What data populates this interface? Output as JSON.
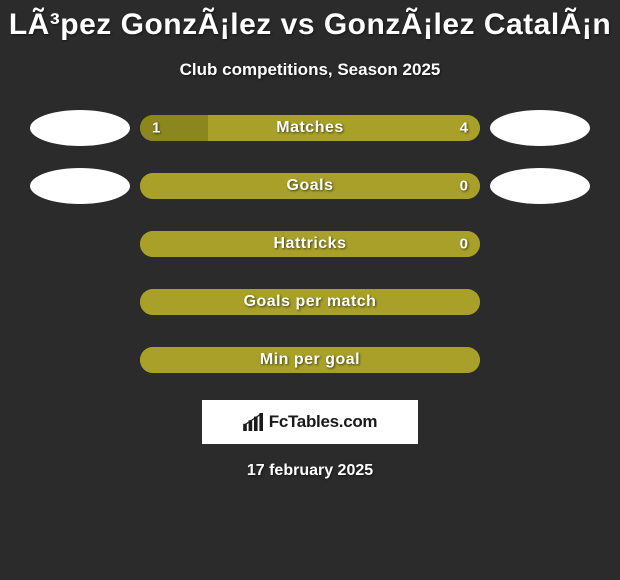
{
  "title": "LÃ³pez GonzÃ¡lez vs GonzÃ¡lez CatalÃ¡n",
  "subtitle": "Club competitions, Season 2025",
  "date": "17 february 2025",
  "brand": "FcTables.com",
  "colors": {
    "background": "#2b2b2b",
    "bar_olive": "#a8a028",
    "bar_olive_dark": "#8c861f",
    "avatar": "#ffffff",
    "text": "#ffffff",
    "brand_bg": "#ffffff",
    "brand_text": "#1a1a1a"
  },
  "stats": [
    {
      "label": "Matches",
      "left_value": "1",
      "right_value": "4",
      "left_pct": 20,
      "right_pct": 80,
      "left_color": "#8c861f",
      "right_color": "#a8a028",
      "show_avatars": true
    },
    {
      "label": "Goals",
      "left_value": "",
      "right_value": "0",
      "left_pct": 0,
      "right_pct": 100,
      "left_color": "#8c861f",
      "right_color": "#a8a028",
      "show_avatars": true
    },
    {
      "label": "Hattricks",
      "left_value": "",
      "right_value": "0",
      "left_pct": 0,
      "right_pct": 100,
      "left_color": "#8c861f",
      "right_color": "#a8a028",
      "show_avatars": false
    },
    {
      "label": "Goals per match",
      "left_value": "",
      "right_value": "",
      "left_pct": 0,
      "right_pct": 100,
      "left_color": "#8c861f",
      "right_color": "#a8a028",
      "show_avatars": false
    },
    {
      "label": "Min per goal",
      "left_value": "",
      "right_value": "",
      "left_pct": 0,
      "right_pct": 100,
      "left_color": "#8c861f",
      "right_color": "#a8a028",
      "show_avatars": false
    }
  ]
}
